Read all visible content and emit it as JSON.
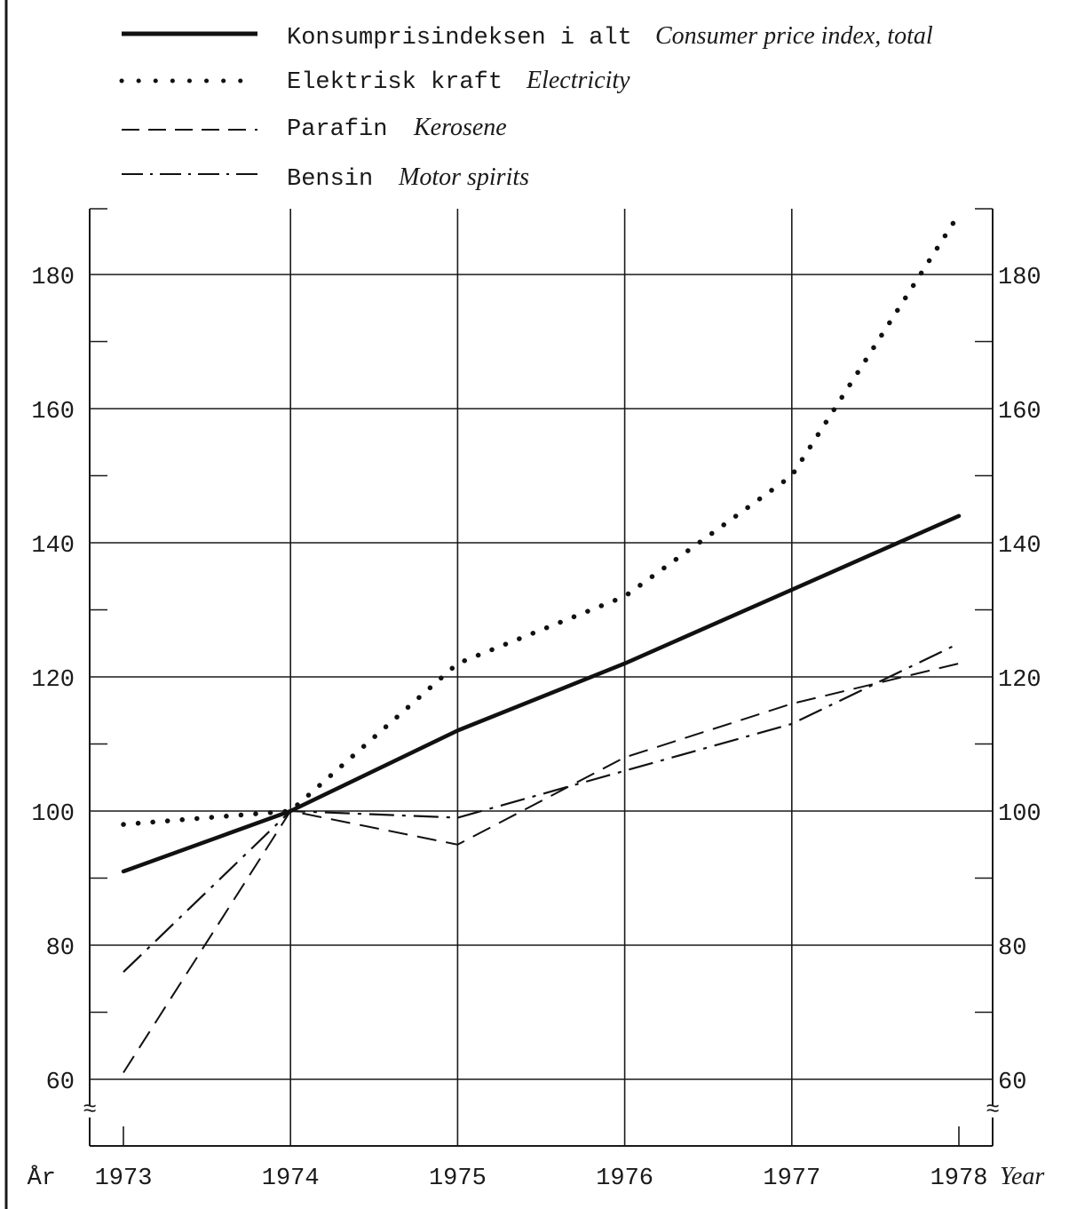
{
  "chart_data": {
    "type": "line",
    "x": [
      1973,
      1974,
      1975,
      1976,
      1977,
      1978
    ],
    "ylim": [
      50,
      190
    ],
    "yticks": [
      60,
      80,
      100,
      120,
      140,
      160,
      180
    ],
    "grid": true,
    "axis_break_marker": "≈",
    "legend_placement": "top",
    "x_label_left": "År",
    "x_label_right": "Year",
    "series": [
      {
        "name": "Konsumprisindeksen i alt",
        "name_en": "Consumer price index, total",
        "style": "solid",
        "values": [
          91,
          100,
          112,
          122,
          133,
          144
        ]
      },
      {
        "name": "Elektrisk kraft",
        "name_en": "Electricity",
        "style": "dotted",
        "values": [
          98,
          100,
          122,
          132,
          150,
          189
        ]
      },
      {
        "name": "Parafin",
        "name_en": "Kerosene",
        "style": "dashed",
        "values": [
          61,
          100,
          95,
          108,
          116,
          122
        ]
      },
      {
        "name": "Bensin",
        "name_en": "Motor spirits",
        "style": "dashdot",
        "values": [
          76,
          100,
          99,
          106,
          113,
          125
        ]
      }
    ]
  }
}
